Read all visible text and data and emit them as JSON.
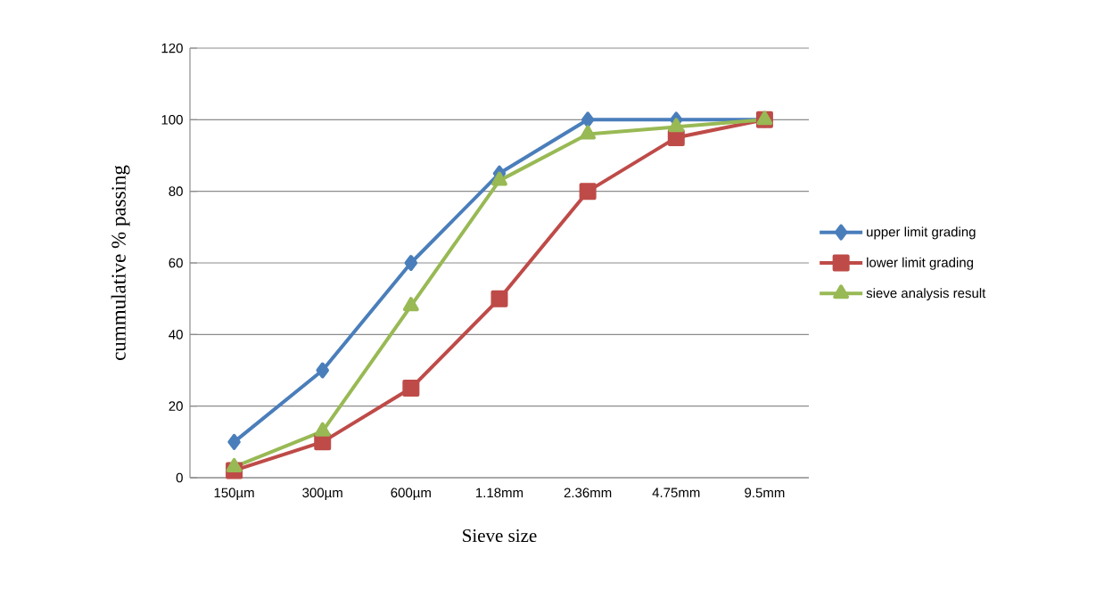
{
  "chart_data": {
    "type": "line",
    "xlabel": "Sieve size",
    "ylabel": "cummulative % passing",
    "categories": [
      "150µm",
      "300µm",
      "600µm",
      "1.18mm",
      "2.36mm",
      "4.75mm",
      "9.5mm"
    ],
    "series": [
      {
        "name": "upper limit grading",
        "color": "#4a7ebb",
        "marker": "diamond",
        "values": [
          10,
          30,
          60,
          85,
          100,
          100,
          100
        ]
      },
      {
        "name": "lower limit grading",
        "color": "#be4b48",
        "marker": "square",
        "values": [
          2,
          10,
          25,
          50,
          80,
          95,
          100
        ]
      },
      {
        "name": "sieve analysis result",
        "color": "#98b954",
        "marker": "triangle",
        "values": [
          3,
          13,
          48,
          83,
          96,
          98,
          100
        ]
      }
    ],
    "ylim": [
      0,
      120
    ],
    "yticks": [
      0,
      20,
      40,
      60,
      80,
      100,
      120
    ],
    "grid": "y",
    "legend": "right"
  }
}
